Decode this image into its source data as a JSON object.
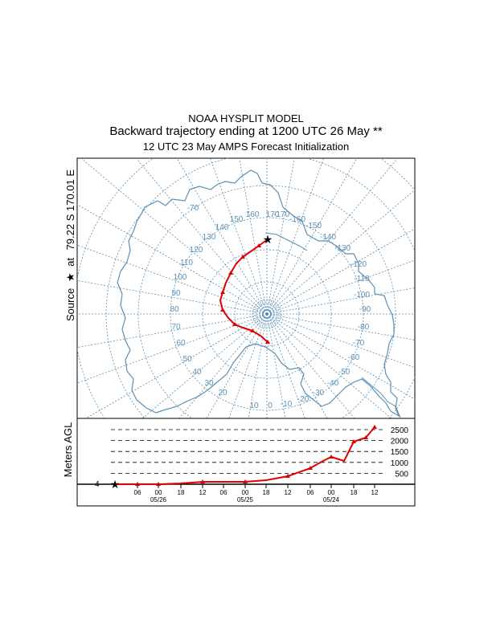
{
  "header": {
    "model": "NOAA HYSPLIT MODEL",
    "title": "Backward trajectory ending at 1200 UTC 26 May **",
    "subtitle": "12 UTC 23 May    AMPS  Forecast Initialization"
  },
  "source": {
    "prefix": "Source",
    "mid": "at",
    "coords": "79.22 S  170.01 E"
  },
  "colors": {
    "trajectory": "#e00000",
    "graticule": "#5b8fb5",
    "frame": "#000000"
  },
  "map": {
    "longitude_labels": [
      {
        "t": "170"
      },
      {
        "t": "160"
      },
      {
        "t": "150"
      },
      {
        "t": "140"
      },
      {
        "t": "130"
      },
      {
        "t": "120"
      },
      {
        "t": "110"
      },
      {
        "t": "100"
      },
      {
        "t": "90"
      },
      {
        "t": "80"
      },
      {
        "t": "70"
      },
      {
        "t": "60"
      },
      {
        "t": "50"
      },
      {
        "t": "40"
      },
      {
        "t": "30"
      },
      {
        "t": "20"
      },
      {
        "t": "10"
      },
      {
        "t": "0"
      },
      {
        "t": "-10"
      },
      {
        "t": "-20"
      },
      {
        "t": "-30"
      },
      {
        "t": "-40"
      },
      {
        "t": "-50"
      },
      {
        "t": "-60"
      },
      {
        "t": "-70"
      },
      {
        "t": "-80"
      },
      {
        "t": "-90"
      },
      {
        "t": "-100"
      },
      {
        "t": "-110"
      },
      {
        "t": "-120"
      },
      {
        "t": "-130"
      },
      {
        "t": "-140"
      },
      {
        "t": "-150"
      },
      {
        "t": "-160"
      },
      {
        "t": "-170"
      },
      {
        "t": "-70"
      }
    ]
  },
  "height_panel": {
    "ylabel": "Meters AGL",
    "start_height_label": "4",
    "height_levels": [
      {
        "label": "2500",
        "value": 2500
      },
      {
        "label": "2000",
        "value": 2000
      },
      {
        "label": "1500",
        "value": 1500
      },
      {
        "label": "1000",
        "value": 1000
      },
      {
        "label": "500",
        "value": 500
      }
    ],
    "time_ticks": [
      "06",
      "00",
      "18",
      "12",
      "06",
      "00",
      "18",
      "12",
      "06",
      "00",
      "18",
      "12"
    ],
    "date_labels": [
      "05/26",
      "05/25",
      "05/24"
    ]
  }
}
